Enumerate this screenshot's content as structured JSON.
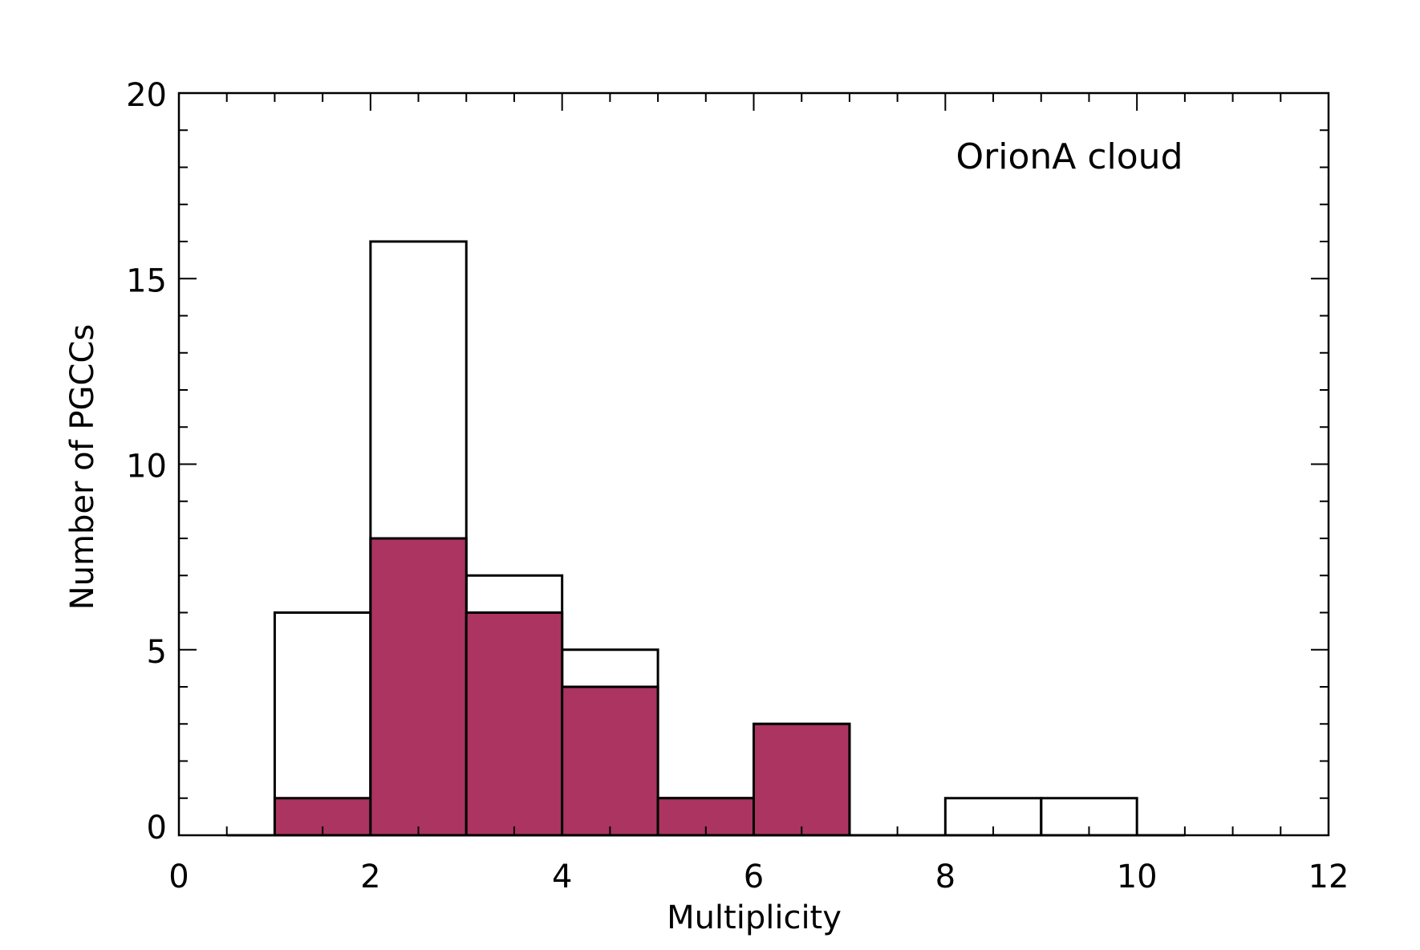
{
  "chart_data": {
    "type": "bar",
    "xlabel": "Multiplicity",
    "ylabel": "Number of PGCCs",
    "annotation": "OrionA cloud",
    "xlim": [
      0,
      12
    ],
    "ylim": [
      0,
      20
    ],
    "xticks": [
      0,
      2,
      4,
      6,
      8,
      10,
      12
    ],
    "yticks": [
      0,
      5,
      10,
      15,
      20
    ],
    "bins": [
      [
        1,
        2
      ],
      [
        2,
        3
      ],
      [
        3,
        4
      ],
      [
        4,
        5
      ],
      [
        5,
        6
      ],
      [
        6,
        7
      ],
      [
        7,
        8
      ],
      [
        8,
        9
      ],
      [
        9,
        10
      ],
      [
        10,
        10.5
      ]
    ],
    "series": [
      {
        "values": [
          6,
          16,
          7,
          5,
          1,
          3,
          0,
          1,
          1,
          0
        ],
        "fill": "none"
      },
      {
        "values": [
          1,
          8,
          6,
          4,
          1,
          3,
          0,
          0,
          0,
          0
        ],
        "fill": "#ab3460"
      }
    ],
    "leading_baseline": [
      0.5,
      1
    ],
    "grid": false
  }
}
